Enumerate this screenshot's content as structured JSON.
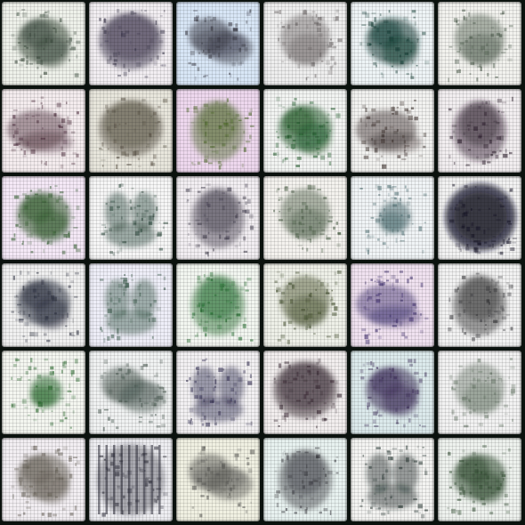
{
  "grid": {
    "rows": 6,
    "cols": 6,
    "tiles": [
      {
        "bg": "#eef1ea",
        "ink": "#3a4a3c",
        "shape": "blob"
      },
      {
        "bg": "#f2eef2",
        "ink": "#3e3a4e",
        "shape": "block"
      },
      {
        "bg": "#d8e6f6",
        "ink": "#3a3a44",
        "shape": "cloud"
      },
      {
        "bg": "#eeeeee",
        "ink": "#6a6464",
        "shape": "round"
      },
      {
        "bg": "#eef4f6",
        "ink": "#143c34",
        "shape": "blob"
      },
      {
        "bg": "#f2f2ee",
        "ink": "#4a5a4a",
        "shape": "round"
      },
      {
        "bg": "#f4ecee",
        "ink": "#4a2a3a",
        "shape": "streak"
      },
      {
        "bg": "#e8e6dc",
        "ink": "#5e574a",
        "shape": "block"
      },
      {
        "bg": "#eed8ee",
        "ink": "#4e6a2a",
        "shape": "plaid"
      },
      {
        "bg": "#f2f4f2",
        "ink": "#1e5a28",
        "shape": "blob"
      },
      {
        "bg": "#f2f2f0",
        "ink": "#3a2e2a",
        "shape": "streak"
      },
      {
        "bg": "#f2eef0",
        "ink": "#2a1c2a",
        "shape": "plaid"
      },
      {
        "bg": "#f4e8f6",
        "ink": "#2e5a2a",
        "shape": "blob"
      },
      {
        "bg": "#f6f6f6",
        "ink": "#2e4a3e",
        "shape": "ring"
      },
      {
        "bg": "#f2eef2",
        "ink": "#3e3a4a",
        "shape": "plaid"
      },
      {
        "bg": "#f4f2ee",
        "ink": "#4a5e46",
        "shape": "round"
      },
      {
        "bg": "#f0f4f6",
        "ink": "#4e6e72",
        "shape": "small"
      },
      {
        "bg": "#f2f2f2",
        "ink": "#161426",
        "shape": "big"
      },
      {
        "bg": "#f0f0f0",
        "ink": "#2a2e3e",
        "shape": "blob"
      },
      {
        "bg": "#eeeef8",
        "ink": "#3a5a4a",
        "shape": "ring"
      },
      {
        "bg": "#f2f6f0",
        "ink": "#1e6a2a",
        "shape": "plaid"
      },
      {
        "bg": "#eef0e8",
        "ink": "#3e4a28",
        "shape": "round"
      },
      {
        "bg": "#f0e2f0",
        "ink": "#3a2a6a",
        "shape": "streak"
      },
      {
        "bg": "#f2f2f2",
        "ink": "#2a2a2e",
        "shape": "plaid"
      },
      {
        "bg": "#f4f6f0",
        "ink": "#2a6a2e",
        "shape": "small"
      },
      {
        "bg": "#f0f2f2",
        "ink": "#4a5a52",
        "shape": "cloud"
      },
      {
        "bg": "#f2f0f2",
        "ink": "#2e2a4e",
        "shape": "ring"
      },
      {
        "bg": "#f2eeee",
        "ink": "#3a2a34",
        "shape": "block"
      },
      {
        "bg": "#dceaec",
        "ink": "#3e2e5a",
        "shape": "blob"
      },
      {
        "bg": "#f2f2f2",
        "ink": "#6a7a6a",
        "shape": "round"
      },
      {
        "bg": "#f2eef2",
        "ink": "#6a645a",
        "shape": "blob"
      },
      {
        "bg": "#eeeef2",
        "ink": "#2a2a36",
        "shape": "bars"
      },
      {
        "bg": "#f0f0e2",
        "ink": "#5a5a56",
        "shape": "cloud"
      },
      {
        "bg": "#e8f2f0",
        "ink": "#3a3a40",
        "shape": "plaid"
      },
      {
        "bg": "#f4f4f2",
        "ink": "#1e2e2a",
        "shape": "ring"
      },
      {
        "bg": "#eef2ee",
        "ink": "#2e4a2e",
        "shape": "blob"
      }
    ]
  }
}
